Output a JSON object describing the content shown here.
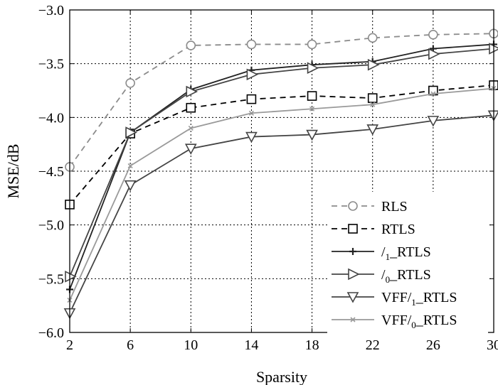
{
  "chart_data": {
    "type": "line",
    "title": "",
    "xlabel": "Sparsity",
    "ylabel": "MSE/dB",
    "x": [
      2,
      6,
      10,
      14,
      18,
      22,
      26,
      30
    ],
    "xlim": [
      2,
      30
    ],
    "ylim": [
      -6.0,
      -3.0
    ],
    "xticks": [
      2,
      6,
      10,
      14,
      18,
      22,
      26,
      30
    ],
    "yticks": [
      -6.0,
      -5.5,
      -5.0,
      -4.5,
      -4.0,
      -3.5,
      -3.0
    ],
    "xtick_labels": [
      "2",
      "6",
      "10",
      "14",
      "18",
      "22",
      "26",
      "30"
    ],
    "ytick_labels": [
      "−6.0",
      "−5.5",
      "−5.0",
      "−4.5",
      "−4.0",
      "−3.5",
      "−3.0"
    ],
    "grid": true,
    "legend_position": "bottom-right",
    "series": [
      {
        "name": "RLS",
        "legend_main": "RLS",
        "legend_sub": "",
        "legend_tail": "",
        "color": "#8c8c8c",
        "dash": "8,6",
        "marker": "circle",
        "values": [
          -4.46,
          -3.68,
          -3.33,
          -3.32,
          -3.32,
          -3.26,
          -3.23,
          -3.22
        ]
      },
      {
        "name": "RTLS",
        "legend_main": "RTLS",
        "legend_sub": "",
        "legend_tail": "",
        "color": "#000000",
        "dash": "8,6",
        "marker": "square",
        "values": [
          -4.81,
          -4.15,
          -3.91,
          -3.83,
          -3.8,
          -3.82,
          -3.75,
          -3.7
        ]
      },
      {
        "name": "l1_RTLS",
        "legend_main": "/",
        "legend_sub": "1",
        "legend_tail": "_RTLS",
        "color": "#222222",
        "dash": "",
        "marker": "plus",
        "values": [
          -5.6,
          -4.14,
          -3.74,
          -3.56,
          -3.51,
          -3.48,
          -3.36,
          -3.32
        ]
      },
      {
        "name": "l0_RTLS",
        "legend_main": "/",
        "legend_sub": "0",
        "legend_tail": "_RTLS",
        "color": "#444444",
        "dash": "",
        "marker": "triangle-right",
        "values": [
          -5.48,
          -4.14,
          -3.76,
          -3.6,
          -3.54,
          -3.51,
          -3.41,
          -3.36
        ]
      },
      {
        "name": "VFF l1_RTLS",
        "legend_main": "VFF/",
        "legend_sub": "1",
        "legend_tail": "_RTLS",
        "color": "#444444",
        "dash": "",
        "marker": "triangle-down",
        "values": [
          -5.82,
          -4.63,
          -4.29,
          -4.18,
          -4.16,
          -4.11,
          -4.03,
          -3.98
        ]
      },
      {
        "name": "VFF l0_RTLS",
        "legend_main": "VFF/",
        "legend_sub": "0",
        "legend_tail": "_RTLS",
        "color": "#9a9a9a",
        "dash": "",
        "marker": "x",
        "values": [
          -5.7,
          -4.45,
          -4.1,
          -3.96,
          -3.92,
          -3.88,
          -3.78,
          -3.73
        ]
      }
    ]
  }
}
